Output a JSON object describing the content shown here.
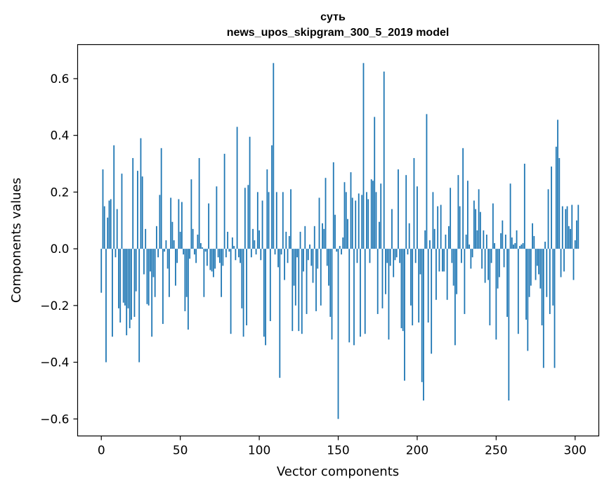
{
  "chart_data": {
    "type": "bar",
    "title": "суть",
    "subtitle": "news_upos_skipgram_300_5_2019 model",
    "xlabel": "Vector components",
    "ylabel": "Components values",
    "xlim": [
      -15,
      315
    ],
    "ylim": [
      -0.66,
      0.72
    ],
    "x_ticks": [
      0,
      50,
      100,
      150,
      200,
      250,
      300
    ],
    "x_tick_labels": [
      "0",
      "50",
      "100",
      "150",
      "200",
      "250",
      "300"
    ],
    "y_ticks": [
      -0.6,
      -0.4,
      -0.2,
      0.0,
      0.2,
      0.4,
      0.6
    ],
    "y_tick_labels": [
      "−0.6",
      "−0.4",
      "−0.2",
      "0.0",
      "0.2",
      "0.4",
      "0.6"
    ],
    "grid": false,
    "legend": "none",
    "bar_color": "#1f77b4",
    "series": [
      {
        "values": [
          -0.155,
          0.28,
          0.15,
          -0.4,
          0.11,
          0.17,
          0.175,
          -0.31,
          0.365,
          -0.03,
          0.14,
          -0.21,
          -0.26,
          0.265,
          -0.19,
          -0.2,
          -0.305,
          -0.21,
          -0.28,
          -0.25,
          0.32,
          -0.24,
          -0.15,
          0.275,
          -0.4,
          0.39,
          0.255,
          -0.09,
          0.07,
          -0.195,
          -0.2,
          -0.08,
          -0.31,
          -0.1,
          -0.17,
          0.08,
          -0.03,
          0.19,
          0.355,
          -0.265,
          -0.01,
          0.03,
          -0.07,
          -0.17,
          0.18,
          0.095,
          0.03,
          -0.13,
          -0.05,
          0.175,
          0.06,
          0.165,
          -0.02,
          -0.22,
          -0.17,
          -0.285,
          -0.035,
          0.245,
          0.07,
          -0.02,
          -0.05,
          0.05,
          0.32,
          0.02,
          0.005,
          -0.17,
          -0.01,
          -0.06,
          0.16,
          -0.075,
          -0.08,
          -0.1,
          -0.07,
          0.22,
          -0.03,
          -0.05,
          -0.17,
          -0.06,
          0.335,
          -0.03,
          0.06,
          -0.01,
          -0.3,
          0.04,
          0.01,
          -0.04,
          0.43,
          -0.03,
          -0.05,
          -0.21,
          -0.31,
          0.215,
          -0.27,
          0.225,
          0.395,
          -0.03,
          0.07,
          0.03,
          -0.02,
          0.2,
          0.065,
          -0.04,
          0.17,
          -0.31,
          -0.34,
          0.28,
          0.2,
          -0.255,
          0.365,
          0.655,
          -0.02,
          0.2,
          -0.065,
          -0.455,
          -0.02,
          0.2,
          -0.11,
          0.06,
          -0.05,
          0.045,
          0.21,
          -0.29,
          -0.13,
          -0.2,
          -0.03,
          -0.29,
          0.06,
          -0.3,
          -0.08,
          0.08,
          -0.23,
          -0.04,
          0.015,
          -0.06,
          -0.12,
          0.08,
          -0.22,
          -0.07,
          0.18,
          -0.2,
          0.09,
          0.07,
          0.25,
          -0.06,
          -0.13,
          -0.24,
          -0.32,
          0.305,
          0.12,
          -0.01,
          -0.6,
          0.01,
          -0.02,
          0.04,
          0.235,
          0.2,
          0.105,
          -0.33,
          0.27,
          0.18,
          -0.34,
          0.17,
          -0.05,
          0.195,
          -0.31,
          0.19,
          0.655,
          -0.3,
          0.2,
          0.175,
          -0.05,
          0.245,
          0.24,
          0.465,
          0.2,
          -0.23,
          0.095,
          0.23,
          -0.21,
          0.625,
          -0.16,
          -0.05,
          -0.32,
          -0.06,
          0.14,
          -0.1,
          -0.04,
          -0.03,
          0.28,
          -0.05,
          -0.28,
          -0.29,
          -0.465,
          0.26,
          -0.02,
          0.09,
          -0.2,
          -0.27,
          0.32,
          -0.05,
          0.22,
          -0.26,
          -0.09,
          -0.47,
          -0.535,
          0.065,
          0.475,
          -0.26,
          0.03,
          -0.37,
          0.2,
          0.07,
          -0.18,
          0.15,
          -0.08,
          0.155,
          -0.08,
          -0.08,
          0.05,
          -0.18,
          0.08,
          0.215,
          -0.05,
          -0.13,
          -0.34,
          -0.16,
          0.26,
          0.15,
          -0.05,
          0.355,
          -0.23,
          0.05,
          0.24,
          0.015,
          -0.07,
          -0.03,
          0.17,
          0.14,
          0.065,
          0.21,
          0.13,
          -0.07,
          0.065,
          -0.12,
          0.05,
          -0.11,
          -0.27,
          -0.05,
          0.16,
          0.02,
          -0.32,
          -0.14,
          -0.1,
          0.055,
          0.1,
          -0.065,
          0.05,
          -0.24,
          -0.535,
          0.23,
          0.04,
          0.015,
          0.02,
          0.065,
          -0.3,
          0.01,
          0.015,
          0.02,
          0.3,
          -0.25,
          -0.36,
          -0.17,
          -0.13,
          0.09,
          0.045,
          -0.11,
          -0.06,
          -0.09,
          -0.14,
          -0.27,
          -0.42,
          0.025,
          -0.17,
          0.21,
          -0.23,
          0.29,
          -0.2,
          -0.42,
          0.36,
          0.455,
          0.32,
          -0.1,
          0.15,
          -0.08,
          0.14,
          0.15,
          0.08,
          0.07,
          0.155,
          -0.11,
          0.03,
          0.1,
          0.155
        ]
      }
    ]
  }
}
